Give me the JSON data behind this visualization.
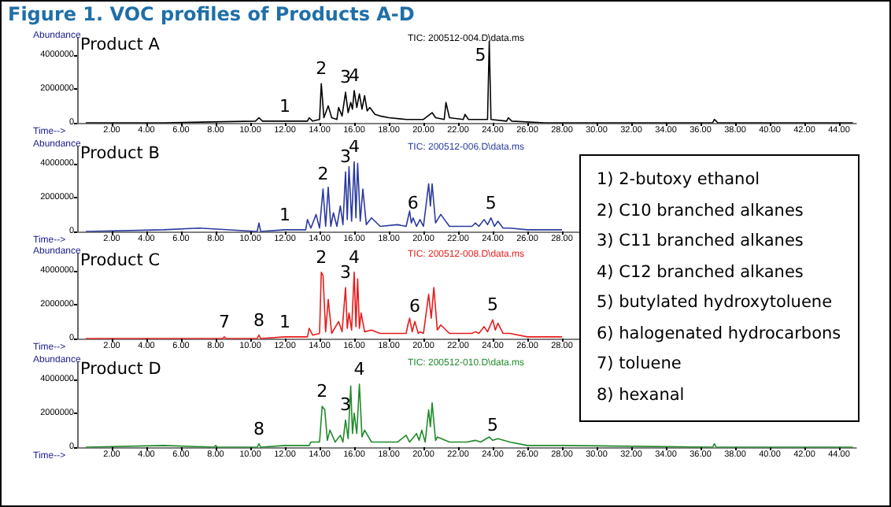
{
  "chart_data": [
    {
      "type": "line",
      "title": "Figure 1. VOC profiles of Products A-D",
      "subtitle": "Product A",
      "xlabel": "Time-->",
      "ylabel": "Abundance",
      "annotations": [
        "TIC: 200512-004.D\\data.ms",
        {
          "text": "1",
          "x": 12,
          "y": 100000
        },
        {
          "text": "2",
          "x": 14.1,
          "y": 2300000
        },
        {
          "text": "3",
          "x": 15.5,
          "y": 1800000
        },
        {
          "text": "4",
          "x": 16,
          "y": 1900000
        },
        {
          "text": "5",
          "x": 23.8,
          "y": 4800000
        }
      ],
      "series": [
        {
          "color": "#000000",
          "x": [
            0.5,
            5,
            10.3,
            10.5,
            10.7,
            12,
            13.3,
            13.4,
            13.6,
            14,
            14.1,
            14.25,
            14.5,
            14.7,
            15,
            15.1,
            15.3,
            15.5,
            15.65,
            15.8,
            15.9,
            16,
            16.15,
            16.3,
            16.45,
            16.6,
            16.75,
            16.9,
            17.2,
            17.5,
            18,
            19,
            20,
            20.5,
            20.7,
            21.2,
            21.3,
            21.5,
            22.3,
            22.4,
            22.6,
            23.7,
            23.8,
            23.9,
            24.8,
            24.9,
            25.1,
            27,
            30,
            36.7,
            36.8,
            37,
            40,
            44.8
          ],
          "values": [
            0,
            0,
            100000,
            300000,
            100000,
            100000,
            100000,
            300000,
            100000,
            200000,
            2300000,
            300000,
            1000000,
            300000,
            200000,
            900000,
            400000,
            1800000,
            600000,
            1200000,
            800000,
            1900000,
            900000,
            1700000,
            800000,
            1600000,
            700000,
            900000,
            500000,
            400000,
            300000,
            200000,
            200000,
            600000,
            300000,
            200000,
            1200000,
            300000,
            200000,
            500000,
            200000,
            200000,
            4800000,
            200000,
            100000,
            300000,
            100000,
            0,
            0,
            0,
            200000,
            0,
            0,
            0
          ]
        }
      ],
      "xlim": [
        0,
        45
      ],
      "ylim": [
        0,
        5000000
      ],
      "xticks": [
        {
          "value": 2,
          "label": "2.00"
        },
        {
          "value": 4,
          "label": "4.00"
        },
        {
          "value": 6,
          "label": "6.00"
        },
        {
          "value": 8,
          "label": "8.00"
        },
        {
          "value": 10,
          "label": "10.00"
        },
        {
          "value": 12,
          "label": "12.00"
        },
        {
          "value": 14,
          "label": "14.00"
        },
        {
          "value": 16,
          "label": "16.00"
        },
        {
          "value": 18,
          "label": "18.00"
        },
        {
          "value": 20,
          "label": "20.00"
        },
        {
          "value": 22,
          "label": "22.00"
        },
        {
          "value": 24,
          "label": "24.00"
        },
        {
          "value": 26,
          "label": "26.00"
        },
        {
          "value": 28,
          "label": "28.00"
        },
        {
          "value": 30,
          "label": "30.00"
        },
        {
          "value": 32,
          "label": "32.00"
        },
        {
          "value": 34,
          "label": "34.00"
        },
        {
          "value": 36,
          "label": "36.00"
        },
        {
          "value": 38,
          "label": "38.00"
        },
        {
          "value": 40,
          "label": "40.00"
        },
        {
          "value": 42,
          "label": "42.00"
        },
        {
          "value": 44,
          "label": "44.00"
        }
      ],
      "yticks": [
        0,
        2000000,
        4000000
      ],
      "marker": "none",
      "line_style": "solid"
    },
    {
      "type": "line",
      "subtitle": "Product B",
      "xlabel": "Time-->",
      "ylabel": "Abundance",
      "annotations": [
        "TIC: 200512-006.D\\data.ms",
        "1) 2-butoxy ethanol",
        "2) C10 branched alkanes",
        "3) C11 branched alkanes",
        "4) C12 branched alkanes",
        "5) butylated hydroxytoluene",
        "6) halogenated hydrocarbons",
        "7) toluene",
        "8) hexanal",
        {
          "text": "1",
          "x": 12,
          "y": 100000
        },
        {
          "text": "2",
          "x": 14.2,
          "y": 2500000
        },
        {
          "text": "3",
          "x": 15.5,
          "y": 3500000
        },
        {
          "text": "4",
          "x": 16,
          "y": 4100000
        },
        {
          "text": "6",
          "x": 19.4,
          "y": 800000
        },
        {
          "text": "5",
          "x": 23.9,
          "y": 800000
        }
      ],
      "series": [
        {
          "color": "#2b3a9e",
          "x": [
            0.5,
            5,
            7,
            10.4,
            10.5,
            10.6,
            12,
            13.2,
            13.3,
            13.5,
            13.8,
            14,
            14.2,
            14.35,
            14.5,
            14.65,
            14.8,
            15,
            15.2,
            15.35,
            15.5,
            15.6,
            15.7,
            15.85,
            16,
            16.1,
            16.2,
            16.35,
            16.5,
            16.7,
            17,
            17.5,
            18.5,
            19,
            19.2,
            19.3,
            19.4,
            19.6,
            19.8,
            20,
            20.3,
            20.4,
            20.5,
            20.7,
            21,
            21.5,
            22,
            22.8,
            23,
            23.2,
            23.5,
            23.7,
            23.9,
            24.1,
            24.3,
            24.6,
            25,
            26,
            28
          ],
          "values": [
            0,
            100000,
            200000,
            0,
            500000,
            0,
            100000,
            100000,
            700000,
            200000,
            1000000,
            200000,
            2500000,
            300000,
            2600000,
            300000,
            1100000,
            300000,
            1500000,
            400000,
            3500000,
            700000,
            3800000,
            600000,
            4100000,
            800000,
            4000000,
            600000,
            2500000,
            400000,
            800000,
            300000,
            400000,
            300000,
            1200000,
            500000,
            800000,
            300000,
            700000,
            300000,
            2800000,
            1500000,
            2800000,
            500000,
            1000000,
            300000,
            300000,
            300000,
            500000,
            300000,
            700000,
            400000,
            800000,
            300000,
            600000,
            200000,
            200000,
            100000,
            100000
          ]
        }
      ],
      "xlim": [
        0,
        45
      ],
      "ylim": [
        0,
        5000000
      ],
      "xticks": [
        {
          "value": 2,
          "label": "2.00"
        },
        {
          "value": 4,
          "label": "4.00"
        },
        {
          "value": 6,
          "label": "6.00"
        },
        {
          "value": 8,
          "label": "8.00"
        },
        {
          "value": 10,
          "label": "10.00"
        },
        {
          "value": 12,
          "label": "12.00"
        },
        {
          "value": 14,
          "label": "14.00"
        },
        {
          "value": 16,
          "label": "16.00"
        },
        {
          "value": 18,
          "label": "18.00"
        },
        {
          "value": 20,
          "label": "20.00"
        },
        {
          "value": 22,
          "label": "22.00"
        },
        {
          "value": 24,
          "label": "24.00"
        },
        {
          "value": 26,
          "label": "26.00"
        },
        {
          "value": 28,
          "label": "28.00"
        }
      ],
      "yticks": [
        0,
        2000000,
        4000000
      ],
      "marker": "none",
      "line_style": "solid"
    },
    {
      "type": "line",
      "subtitle": "Product C",
      "xlabel": "Time-->",
      "ylabel": "Abundance",
      "annotations": [
        "TIC: 200512-008.D\\data.ms",
        {
          "text": "7",
          "x": 8.5,
          "y": 100000
        },
        {
          "text": "8",
          "x": 10.5,
          "y": 200000
        },
        {
          "text": "1",
          "x": 12,
          "y": 100000
        },
        {
          "text": "2",
          "x": 14.1,
          "y": 3900000
        },
        {
          "text": "3",
          "x": 15.5,
          "y": 3000000
        },
        {
          "text": "4",
          "x": 16,
          "y": 3900000
        },
        {
          "text": "6",
          "x": 19.5,
          "y": 1000000
        },
        {
          "text": "5",
          "x": 24,
          "y": 1100000
        }
      ],
      "series": [
        {
          "color": "#e81c1c",
          "x": [
            0.5,
            5,
            8.4,
            8.5,
            8.6,
            10.4,
            10.5,
            10.6,
            12,
            13.3,
            13.4,
            13.6,
            14,
            14.1,
            14.2,
            14.35,
            14.5,
            14.7,
            15.1,
            15.3,
            15.5,
            15.6,
            15.7,
            15.85,
            16,
            16.1,
            16.2,
            16.3,
            16.4,
            16.6,
            17,
            17.5,
            18.5,
            19,
            19.1,
            19.2,
            19.35,
            19.5,
            19.7,
            19.8,
            20,
            20.3,
            20.45,
            20.6,
            20.8,
            21,
            21.5,
            22,
            22.8,
            23,
            23.2,
            23.5,
            23.7,
            24,
            24.15,
            24.3,
            24.6,
            25,
            26,
            28
          ],
          "values": [
            0,
            0,
            0,
            100000,
            0,
            0,
            200000,
            0,
            100000,
            100000,
            600000,
            200000,
            300000,
            3900000,
            3700000,
            400000,
            2300000,
            300000,
            1000000,
            400000,
            3000000,
            600000,
            1500000,
            500000,
            3900000,
            700000,
            3500000,
            600000,
            1500000,
            400000,
            500000,
            300000,
            300000,
            300000,
            800000,
            1200000,
            400000,
            1000000,
            300000,
            400000,
            300000,
            2600000,
            1200000,
            3000000,
            500000,
            800000,
            300000,
            300000,
            300000,
            400000,
            300000,
            700000,
            400000,
            1100000,
            500000,
            900000,
            300000,
            300000,
            100000,
            100000
          ]
        }
      ],
      "xlim": [
        0,
        45
      ],
      "ylim": [
        0,
        5000000
      ],
      "xticks": [
        {
          "value": 2,
          "label": "2.00"
        },
        {
          "value": 4,
          "label": "4.00"
        },
        {
          "value": 6,
          "label": "6.00"
        },
        {
          "value": 8,
          "label": "8.00"
        },
        {
          "value": 10,
          "label": "10.00"
        },
        {
          "value": 12,
          "label": "12.00"
        },
        {
          "value": 14,
          "label": "14.00"
        },
        {
          "value": 16,
          "label": "16.00"
        },
        {
          "value": 18,
          "label": "18.00"
        },
        {
          "value": 20,
          "label": "20.00"
        },
        {
          "value": 22,
          "label": "22.00"
        },
        {
          "value": 24,
          "label": "24.00"
        },
        {
          "value": 26,
          "label": "26.00"
        },
        {
          "value": 28,
          "label": "28.00"
        }
      ],
      "yticks": [
        0,
        2000000,
        4000000
      ],
      "marker": "none",
      "line_style": "solid"
    },
    {
      "type": "line",
      "subtitle": "Product D",
      "xlabel": "Time-->",
      "ylabel": "Abundance",
      "annotations": [
        "TIC: 200512-010.D\\data.ms",
        {
          "text": "8",
          "x": 10.5,
          "y": 200000
        },
        {
          "text": "2",
          "x": 14.15,
          "y": 2400000
        },
        {
          "text": "3",
          "x": 15.5,
          "y": 1600000
        },
        {
          "text": "4",
          "x": 16.3,
          "y": 3700000
        },
        {
          "text": "5",
          "x": 24,
          "y": 400000
        }
      ],
      "series": [
        {
          "color": "#1f8a2a",
          "x": [
            0.5,
            5,
            7.9,
            8,
            8.1,
            10.4,
            10.5,
            10.6,
            12,
            13.4,
            13.5,
            13.8,
            14,
            14.15,
            14.3,
            14.45,
            14.6,
            14.9,
            15.2,
            15.35,
            15.5,
            15.65,
            15.8,
            15.9,
            16,
            16.15,
            16.3,
            16.45,
            16.6,
            17,
            17.5,
            18.5,
            19,
            19.2,
            19.6,
            19.75,
            19.9,
            20.1,
            20.3,
            20.4,
            20.5,
            20.7,
            20.8,
            21.5,
            22.5,
            23,
            23.3,
            23.8,
            24,
            24.3,
            25,
            26,
            28,
            36.7,
            36.8,
            36.9,
            40,
            44.8
          ],
          "values": [
            0,
            100000,
            0,
            100000,
            0,
            0,
            200000,
            0,
            100000,
            100000,
            300000,
            300000,
            300000,
            2400000,
            2200000,
            400000,
            1000000,
            300000,
            700000,
            300000,
            1600000,
            500000,
            3600000,
            800000,
            2000000,
            800000,
            3700000,
            600000,
            1000000,
            300000,
            300000,
            300000,
            700000,
            300000,
            800000,
            400000,
            1000000,
            300000,
            2200000,
            1200000,
            2600000,
            400000,
            600000,
            300000,
            300000,
            400000,
            300000,
            600000,
            400000,
            500000,
            300000,
            100000,
            100000,
            0,
            200000,
            0,
            0,
            0
          ]
        }
      ],
      "xlim": [
        0,
        45
      ],
      "ylim": [
        0,
        5000000
      ],
      "xticks": [
        {
          "value": 2,
          "label": "2.00"
        },
        {
          "value": 4,
          "label": "4.00"
        },
        {
          "value": 6,
          "label": "6.00"
        },
        {
          "value": 8,
          "label": "8.00"
        },
        {
          "value": 10,
          "label": "10.00"
        },
        {
          "value": 12,
          "label": "12.00"
        },
        {
          "value": 14,
          "label": "14.00"
        },
        {
          "value": 16,
          "label": "16.00"
        },
        {
          "value": 18,
          "label": "18.00"
        },
        {
          "value": 20,
          "label": "20.00"
        },
        {
          "value": 22,
          "label": "22.00"
        },
        {
          "value": 24,
          "label": "24.00"
        },
        {
          "value": 26,
          "label": "26.00"
        },
        {
          "value": 28,
          "label": "28.00"
        },
        {
          "value": 30,
          "label": "30.00"
        },
        {
          "value": 32,
          "label": "32.00"
        },
        {
          "value": 34,
          "label": "34.00"
        },
        {
          "value": 36,
          "label": "36.00"
        },
        {
          "value": 38,
          "label": "38.00"
        },
        {
          "value": 40,
          "label": "40.00"
        },
        {
          "value": 42,
          "label": "42.00"
        },
        {
          "value": 44,
          "label": "44.00"
        }
      ],
      "yticks": [
        0,
        2000000,
        4000000
      ],
      "marker": "none",
      "line_style": "solid"
    }
  ]
}
